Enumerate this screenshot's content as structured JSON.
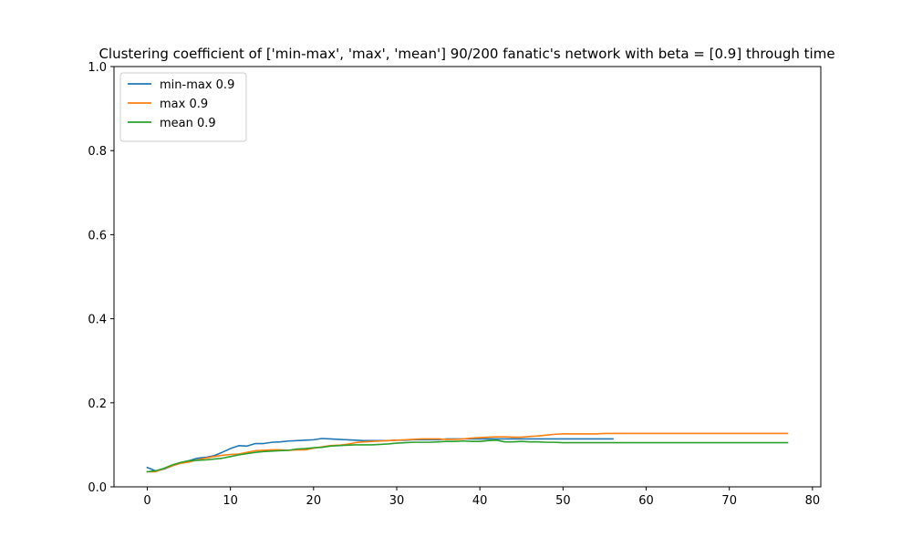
{
  "chart_data": {
    "type": "line",
    "title": "Clustering coefficient of ['min-max', 'max', 'mean'] 90/200 fanatic's network with beta = [0.9] through time",
    "xlabel": "",
    "ylabel": "",
    "xlim": [
      -4,
      81
    ],
    "ylim": [
      0,
      1.0
    ],
    "xticks": [
      0,
      10,
      20,
      30,
      40,
      50,
      60,
      70,
      80
    ],
    "yticks": [
      0.0,
      0.2,
      0.4,
      0.6,
      0.8,
      1.0
    ],
    "xtick_labels": [
      "0",
      "10",
      "20",
      "30",
      "40",
      "50",
      "60",
      "70",
      "80"
    ],
    "ytick_labels": [
      "0.0",
      "0.2",
      "0.4",
      "0.6",
      "0.8",
      "1.0"
    ],
    "grid": false,
    "legend": "top-left",
    "series": [
      {
        "name": "min-max 0.9",
        "color": "#1f77b4",
        "x": [
          0,
          1,
          2,
          3,
          4,
          5,
          6,
          7,
          8,
          9,
          10,
          11,
          12,
          13,
          14,
          15,
          16,
          17,
          18,
          19,
          20,
          21,
          22,
          23,
          24,
          25,
          26,
          27,
          28,
          29,
          30,
          31,
          32,
          33,
          34,
          35,
          36,
          37,
          38,
          39,
          40,
          41,
          42,
          43,
          44,
          45,
          46,
          47,
          48,
          49,
          50,
          51,
          52,
          53,
          54,
          55,
          56
        ],
        "y": [
          0.046,
          0.038,
          0.042,
          0.05,
          0.057,
          0.062,
          0.068,
          0.07,
          0.074,
          0.082,
          0.091,
          0.098,
          0.097,
          0.103,
          0.103,
          0.106,
          0.107,
          0.109,
          0.11,
          0.111,
          0.112,
          0.115,
          0.114,
          0.113,
          0.112,
          0.111,
          0.11,
          0.11,
          0.11,
          0.11,
          0.111,
          0.111,
          0.112,
          0.112,
          0.112,
          0.112,
          0.114,
          0.114,
          0.114,
          0.114,
          0.114,
          0.114,
          0.114,
          0.114,
          0.114,
          0.114,
          0.114,
          0.114,
          0.114,
          0.114,
          0.114,
          0.114,
          0.114,
          0.114,
          0.114,
          0.114,
          0.114
        ]
      },
      {
        "name": "max 0.9",
        "color": "#ff7f0e",
        "x": [
          0,
          1,
          2,
          3,
          4,
          5,
          6,
          7,
          8,
          9,
          10,
          11,
          12,
          13,
          14,
          15,
          16,
          17,
          18,
          19,
          20,
          21,
          22,
          23,
          24,
          25,
          26,
          27,
          28,
          29,
          30,
          31,
          32,
          33,
          34,
          35,
          36,
          37,
          38,
          39,
          40,
          41,
          42,
          43,
          44,
          45,
          46,
          47,
          48,
          49,
          50,
          51,
          52,
          53,
          54,
          55,
          56,
          57,
          58,
          59,
          60,
          61,
          62,
          63,
          64,
          65,
          66,
          67,
          68,
          69,
          70,
          71,
          72,
          73,
          74,
          75,
          76,
          77
        ],
        "y": [
          0.036,
          0.036,
          0.043,
          0.05,
          0.056,
          0.059,
          0.064,
          0.068,
          0.072,
          0.075,
          0.077,
          0.078,
          0.082,
          0.086,
          0.087,
          0.088,
          0.088,
          0.087,
          0.088,
          0.088,
          0.092,
          0.095,
          0.098,
          0.099,
          0.101,
          0.105,
          0.107,
          0.108,
          0.109,
          0.11,
          0.111,
          0.112,
          0.113,
          0.114,
          0.114,
          0.114,
          0.113,
          0.113,
          0.114,
          0.116,
          0.117,
          0.118,
          0.119,
          0.119,
          0.118,
          0.118,
          0.12,
          0.121,
          0.123,
          0.125,
          0.126,
          0.126,
          0.126,
          0.126,
          0.126,
          0.127,
          0.127,
          0.127,
          0.127,
          0.127,
          0.127,
          0.127,
          0.127,
          0.127,
          0.127,
          0.127,
          0.127,
          0.127,
          0.127,
          0.127,
          0.127,
          0.127,
          0.127,
          0.127,
          0.127,
          0.127,
          0.127,
          0.127
        ]
      },
      {
        "name": "mean 0.9",
        "color": "#2ca02c",
        "x": [
          0,
          1,
          2,
          3,
          4,
          5,
          6,
          7,
          8,
          9,
          10,
          11,
          12,
          13,
          14,
          15,
          16,
          17,
          18,
          19,
          20,
          21,
          22,
          23,
          24,
          25,
          26,
          27,
          28,
          29,
          30,
          31,
          32,
          33,
          34,
          35,
          36,
          37,
          38,
          39,
          40,
          41,
          42,
          43,
          44,
          45,
          46,
          47,
          48,
          49,
          50,
          51,
          52,
          53,
          54,
          55,
          56,
          57,
          58,
          59,
          60,
          61,
          62,
          63,
          64,
          65,
          66,
          67,
          68,
          69,
          70,
          71,
          72,
          73,
          74,
          75,
          76,
          77
        ],
        "y": [
          0.036,
          0.038,
          0.044,
          0.052,
          0.058,
          0.062,
          0.063,
          0.064,
          0.066,
          0.068,
          0.072,
          0.076,
          0.079,
          0.082,
          0.084,
          0.085,
          0.086,
          0.087,
          0.09,
          0.091,
          0.093,
          0.094,
          0.097,
          0.098,
          0.099,
          0.1,
          0.1,
          0.1,
          0.101,
          0.102,
          0.104,
          0.105,
          0.106,
          0.106,
          0.106,
          0.107,
          0.108,
          0.108,
          0.109,
          0.108,
          0.108,
          0.11,
          0.111,
          0.107,
          0.107,
          0.108,
          0.107,
          0.107,
          0.106,
          0.106,
          0.105,
          0.105,
          0.105,
          0.105,
          0.105,
          0.105,
          0.105,
          0.105,
          0.105,
          0.105,
          0.105,
          0.105,
          0.105,
          0.105,
          0.105,
          0.105,
          0.105,
          0.105,
          0.105,
          0.105,
          0.105,
          0.105,
          0.105,
          0.105,
          0.105,
          0.105,
          0.105,
          0.105
        ]
      }
    ]
  }
}
